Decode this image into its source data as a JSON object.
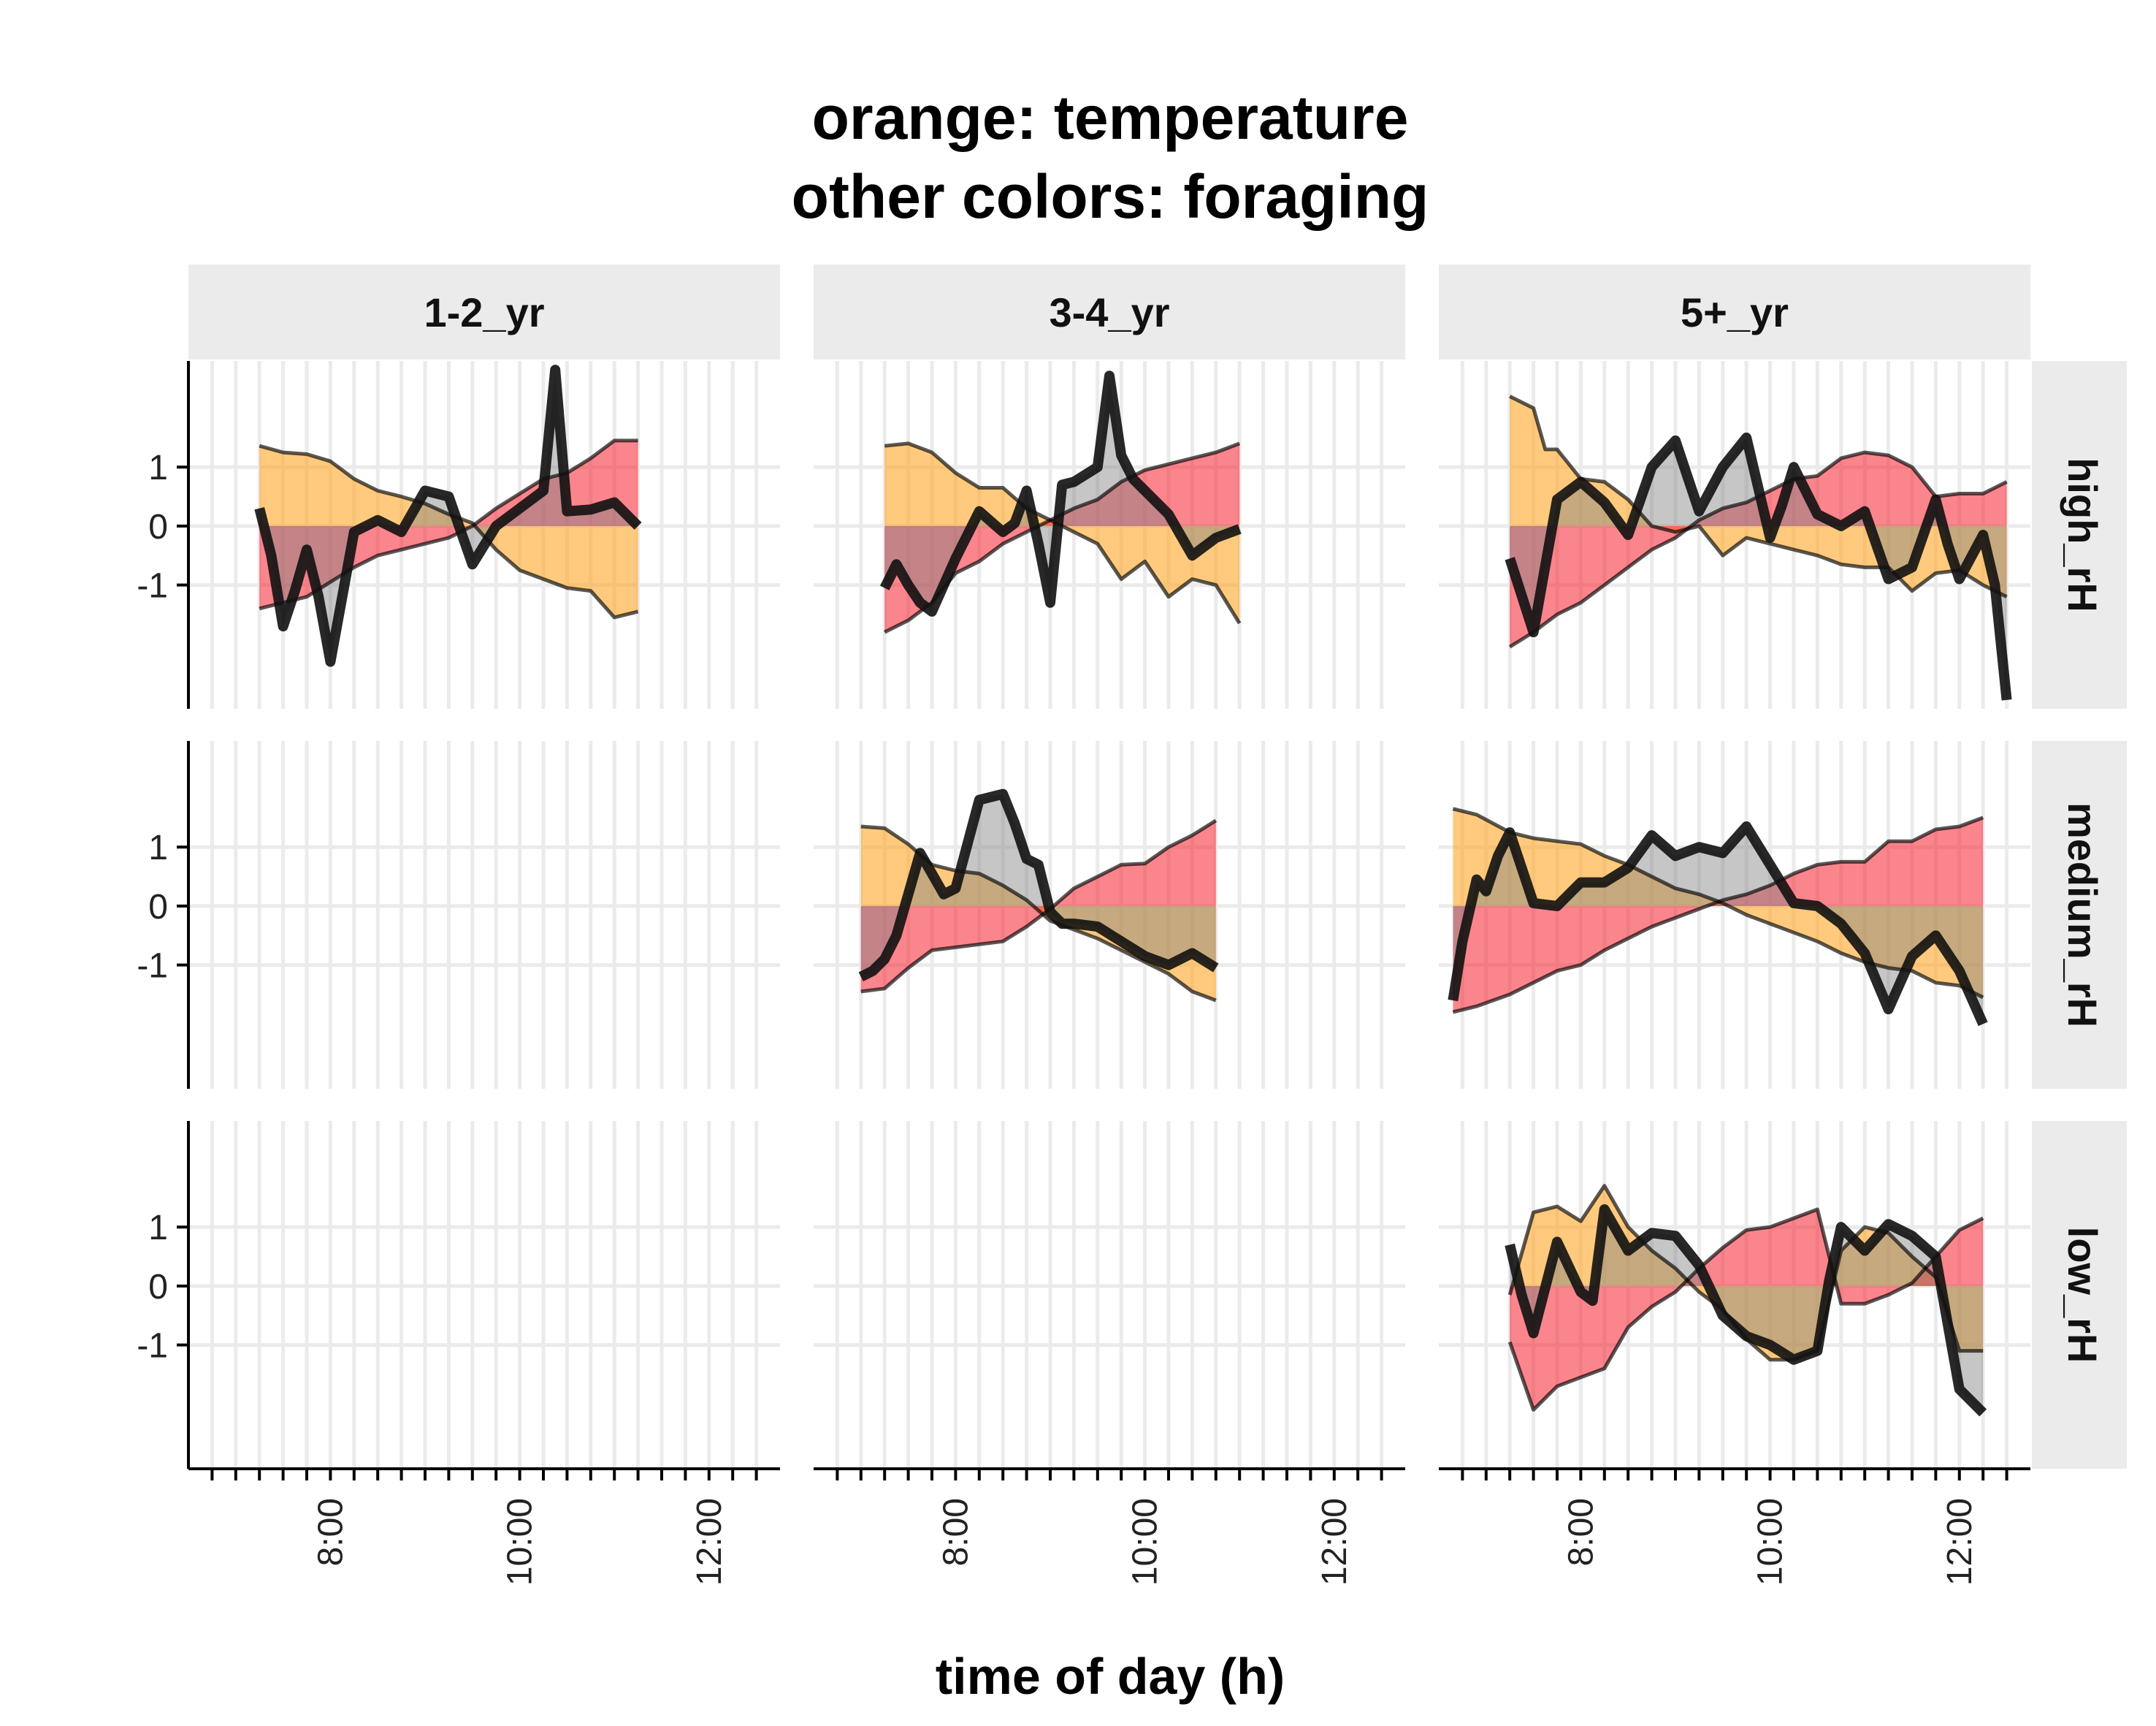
{
  "chart_data": {
    "type": "area",
    "title": "orange: temperature\nother colors: foraging",
    "xlabel": "time of day (h)",
    "ylabel": "",
    "xlim": [
      6.5,
      12.75
    ],
    "ylim": [
      -3.1,
      2.8
    ],
    "x_ticks": [
      8,
      10,
      12
    ],
    "x_tick_labels": [
      "8:00",
      "10:00",
      "12:00"
    ],
    "y_ticks": [
      -1,
      0,
      1
    ],
    "y_tick_labels": [
      "-1",
      "0",
      "1"
    ],
    "grid": true,
    "columns": [
      "1-2_yr",
      "3-4_yr",
      "5+_yr"
    ],
    "rows": [
      "high_rH",
      "medium_rH",
      "low_rH"
    ],
    "colors": {
      "temperature": "#FFA726",
      "foraging_band": "#F8212F",
      "foraging_line": "#000000",
      "overlap": "#808080"
    },
    "panels": [
      {
        "column": "1-2_yr",
        "row": "high_rH",
        "temperature": {
          "x": [
            7.25,
            7.5,
            7.75,
            8.0,
            8.25,
            8.5,
            8.75,
            9.0,
            9.25,
            9.5,
            9.75,
            10.0,
            10.25,
            10.5,
            10.75,
            11.0,
            11.25
          ],
          "y": [
            1.36,
            1.25,
            1.22,
            1.1,
            0.8,
            0.6,
            0.5,
            0.38,
            0.2,
            0.05,
            -0.4,
            -0.75,
            -0.9,
            -1.05,
            -1.1,
            -1.55,
            -1.45
          ]
        },
        "foraging_band": {
          "x": [
            7.25,
            7.5,
            7.75,
            8.0,
            8.25,
            8.5,
            8.75,
            9.0,
            9.25,
            9.5,
            9.75,
            10.0,
            10.25,
            10.5,
            10.75,
            11.0,
            11.25
          ],
          "y": [
            -1.4,
            -1.3,
            -1.2,
            -0.95,
            -0.7,
            -0.5,
            -0.4,
            -0.3,
            -0.2,
            0,
            0.3,
            0.55,
            0.8,
            0.9,
            1.15,
            1.45,
            1.45
          ]
        },
        "foraging_line": {
          "x": [
            7.25,
            7.375,
            7.5,
            7.625,
            7.75,
            7.875,
            8.0,
            8.25,
            8.5,
            8.75,
            9.0,
            9.25,
            9.5,
            9.75,
            10.0,
            10.25,
            10.375,
            10.5,
            10.75,
            11.0,
            11.25
          ],
          "y": [
            0.3,
            -0.5,
            -1.7,
            -1.1,
            -0.4,
            -1.2,
            -2.3,
            -0.1,
            0.1,
            -0.1,
            0.6,
            0.5,
            -0.65,
            0,
            0.3,
            0.6,
            2.65,
            0.25,
            0.28,
            0.4,
            0
          ]
        }
      },
      {
        "column": "1-2_yr",
        "row": "medium_rH"
      },
      {
        "column": "1-2_yr",
        "row": "low_rH"
      },
      {
        "column": "3-4_yr",
        "row": "high_rH",
        "temperature": {
          "x": [
            7.25,
            7.5,
            7.75,
            8.0,
            8.25,
            8.5,
            8.75,
            9.0,
            9.25,
            9.5,
            9.75,
            10.0,
            10.25,
            10.5,
            10.75,
            11.0
          ],
          "y": [
            1.36,
            1.4,
            1.25,
            0.9,
            0.65,
            0.65,
            0.3,
            0.1,
            -0.1,
            -0.3,
            -0.9,
            -0.6,
            -1.2,
            -0.9,
            -1.0,
            -1.65
          ]
        },
        "foraging_band": {
          "x": [
            7.25,
            7.5,
            7.75,
            8.0,
            8.25,
            8.5,
            8.75,
            9.0,
            9.25,
            9.5,
            9.75,
            10.0,
            10.25,
            10.5,
            10.75,
            11.0
          ],
          "y": [
            -1.8,
            -1.6,
            -1.3,
            -0.8,
            -0.6,
            -0.3,
            -0.1,
            0.1,
            0.3,
            0.45,
            0.75,
            0.95,
            1.05,
            1.15,
            1.25,
            1.4
          ]
        },
        "foraging_line": {
          "x": [
            7.25,
            7.375,
            7.5,
            7.625,
            7.75,
            7.875,
            8.0,
            8.25,
            8.5,
            8.625,
            8.75,
            8.875,
            9.0,
            9.125,
            9.25,
            9.5,
            9.625,
            9.75,
            9.875,
            10.0,
            10.25,
            10.5,
            10.75,
            11.0
          ],
          "y": [
            -1.05,
            -0.65,
            -1.0,
            -1.3,
            -1.45,
            -1.0,
            -0.55,
            0.25,
            -0.1,
            0.05,
            0.6,
            -0.3,
            -1.3,
            0.7,
            0.75,
            1.0,
            2.55,
            1.2,
            0.8,
            0.6,
            0.2,
            -0.5,
            -0.2,
            -0.05
          ]
        }
      },
      {
        "column": "3-4_yr",
        "row": "medium_rH",
        "temperature": {
          "x": [
            7.0,
            7.25,
            7.5,
            7.75,
            8.0,
            8.25,
            8.5,
            8.75,
            9.0,
            9.25,
            9.5,
            9.75,
            10.0,
            10.25,
            10.5,
            10.75
          ],
          "y": [
            1.35,
            1.32,
            1.05,
            0.7,
            0.6,
            0.55,
            0.35,
            0.1,
            -0.25,
            -0.4,
            -0.55,
            -0.75,
            -0.95,
            -1.15,
            -1.45,
            -1.6
          ]
        },
        "foraging_band": {
          "x": [
            7.0,
            7.25,
            7.5,
            7.75,
            8.0,
            8.25,
            8.5,
            8.75,
            9.0,
            9.25,
            9.5,
            9.75,
            10.0,
            10.25,
            10.5,
            10.75
          ],
          "y": [
            -1.45,
            -1.4,
            -1.05,
            -0.75,
            -0.7,
            -0.65,
            -0.6,
            -0.35,
            -0.05,
            0.3,
            0.5,
            0.7,
            0.72,
            1.0,
            1.2,
            1.45
          ]
        },
        "foraging_line": {
          "x": [
            7.0,
            7.125,
            7.25,
            7.375,
            7.5,
            7.625,
            7.75,
            7.875,
            8.0,
            8.25,
            8.5,
            8.625,
            8.75,
            8.875,
            9.0,
            9.125,
            9.25,
            9.5,
            9.75,
            10.0,
            10.25,
            10.5,
            10.75
          ],
          "y": [
            -1.2,
            -1.1,
            -0.9,
            -0.5,
            0.2,
            0.9,
            0.55,
            0.2,
            0.3,
            1.8,
            1.9,
            1.4,
            0.8,
            0.7,
            -0.1,
            -0.3,
            -0.3,
            -0.35,
            -0.6,
            -0.85,
            -1.0,
            -0.8,
            -1.05
          ]
        }
      },
      {
        "column": "3-4_yr",
        "row": "low_rH"
      },
      {
        "column": "5+_yr",
        "row": "high_rH",
        "temperature": {
          "x": [
            7.25,
            7.5,
            7.625,
            7.75,
            8.0,
            8.25,
            8.5,
            8.75,
            9.0,
            9.25,
            9.5,
            9.75,
            10.0,
            10.25,
            10.5,
            10.75,
            11.0,
            11.25,
            11.5,
            11.75,
            12.0,
            12.25,
            12.5
          ],
          "y": [
            2.2,
            2.0,
            1.3,
            1.3,
            0.8,
            0.75,
            0.45,
            0,
            -0.1,
            0,
            -0.5,
            -0.2,
            -0.3,
            -0.4,
            -0.5,
            -0.65,
            -0.7,
            -0.7,
            -1.1,
            -0.8,
            -0.75,
            -1.0,
            -1.2
          ]
        },
        "foraging_band": {
          "x": [
            7.25,
            7.5,
            7.75,
            8.0,
            8.25,
            8.5,
            8.75,
            9.0,
            9.25,
            9.5,
            9.75,
            10.0,
            10.25,
            10.5,
            10.75,
            11.0,
            11.25,
            11.5,
            11.75,
            12.0,
            12.25,
            12.5
          ],
          "y": [
            -2.05,
            -1.8,
            -1.5,
            -1.3,
            -1.0,
            -0.7,
            -0.4,
            -0.2,
            0.1,
            0.3,
            0.4,
            0.6,
            0.8,
            0.85,
            1.15,
            1.25,
            1.2,
            1.0,
            0.5,
            0.55,
            0.55,
            0.75
          ]
        },
        "foraging_line": {
          "x": [
            7.25,
            7.5,
            7.75,
            8.0,
            8.25,
            8.5,
            8.75,
            9.0,
            9.25,
            9.5,
            9.75,
            10.0,
            10.125,
            10.25,
            10.5,
            10.75,
            11.0,
            11.25,
            11.5,
            11.75,
            11.875,
            12.0,
            12.25,
            12.375,
            12.5
          ],
          "y": [
            -0.55,
            -1.8,
            0.45,
            0.75,
            0.4,
            -0.15,
            1.0,
            1.45,
            0.25,
            1.0,
            1.5,
            -0.2,
            0.35,
            1.0,
            0.2,
            0,
            0.25,
            -0.9,
            -0.7,
            0.45,
            -0.3,
            -0.9,
            -0.15,
            -1.0,
            -2.95
          ]
        }
      },
      {
        "column": "5+_yr",
        "row": "medium_rH",
        "temperature": {
          "x": [
            6.65,
            6.9,
            7.25,
            7.5,
            7.75,
            8.0,
            8.25,
            8.5,
            8.75,
            9.0,
            9.25,
            9.5,
            9.75,
            10.0,
            10.25,
            10.5,
            10.75,
            11.0,
            11.25,
            11.5,
            11.75,
            12.0,
            12.25
          ],
          "y": [
            1.65,
            1.55,
            1.25,
            1.15,
            1.1,
            1.05,
            0.85,
            0.7,
            0.5,
            0.3,
            0.2,
            0.05,
            -0.15,
            -0.3,
            -0.45,
            -0.6,
            -0.8,
            -0.95,
            -1.05,
            -1.1,
            -1.3,
            -1.35,
            -1.55
          ]
        },
        "foraging_band": {
          "x": [
            6.65,
            6.9,
            7.25,
            7.5,
            7.75,
            8.0,
            8.25,
            8.5,
            8.75,
            9.0,
            9.25,
            9.5,
            9.75,
            10.0,
            10.25,
            10.5,
            10.75,
            11.0,
            11.25,
            11.5,
            11.75,
            12.0,
            12.25
          ],
          "y": [
            -1.8,
            -1.7,
            -1.5,
            -1.3,
            -1.1,
            -1.0,
            -0.75,
            -0.55,
            -0.35,
            -0.2,
            -0.05,
            0.1,
            0.2,
            0.35,
            0.55,
            0.7,
            0.75,
            0.75,
            1.1,
            1.1,
            1.3,
            1.35,
            1.5
          ]
        },
        "foraging_line": {
          "x": [
            6.65,
            6.75,
            6.9,
            7.0,
            7.125,
            7.25,
            7.5,
            7.75,
            8.0,
            8.25,
            8.5,
            8.75,
            9.0,
            9.25,
            9.5,
            9.75,
            10.0,
            10.25,
            10.5,
            10.75,
            11.0,
            11.25,
            11.5,
            11.75,
            12.0,
            12.25
          ],
          "y": [
            -1.6,
            -0.6,
            0.45,
            0.25,
            0.85,
            1.25,
            0.05,
            0,
            0.4,
            0.4,
            0.65,
            1.2,
            0.85,
            1.0,
            0.9,
            1.35,
            0.7,
            0.05,
            0,
            -0.3,
            -0.8,
            -1.75,
            -0.85,
            -0.5,
            -1.1,
            -2.0
          ]
        }
      },
      {
        "column": "5+_yr",
        "row": "low_rH",
        "temperature": {
          "x": [
            7.25,
            7.5,
            7.75,
            8.0,
            8.25,
            8.5,
            8.75,
            9.0,
            9.25,
            9.5,
            9.75,
            10.0,
            10.25,
            10.5,
            10.75,
            11.0,
            11.25,
            11.5,
            11.75,
            12.0,
            12.25
          ],
          "y": [
            -0.15,
            1.25,
            1.35,
            1.1,
            1.7,
            1.0,
            0.6,
            0.3,
            -0.1,
            -0.4,
            -0.9,
            -1.25,
            -1.25,
            -1.1,
            0.6,
            1.0,
            0.9,
            0.5,
            0.15,
            -1.1,
            -1.1
          ]
        },
        "foraging_band": {
          "x": [
            7.25,
            7.5,
            7.75,
            8.0,
            8.25,
            8.5,
            8.75,
            9.0,
            9.25,
            9.5,
            9.75,
            10.0,
            10.25,
            10.5,
            10.75,
            11.0,
            11.25,
            11.5,
            11.75,
            12.0,
            12.25
          ],
          "y": [
            -0.95,
            -2.1,
            -1.7,
            -1.55,
            -1.4,
            -0.7,
            -0.35,
            -0.1,
            0.3,
            0.65,
            0.95,
            1.0,
            1.15,
            1.3,
            -0.3,
            -0.3,
            -0.15,
            0.05,
            0.5,
            0.95,
            1.15
          ]
        },
        "foraging_line": {
          "x": [
            7.25,
            7.375,
            7.5,
            7.75,
            8.0,
            8.125,
            8.25,
            8.5,
            8.75,
            9.0,
            9.25,
            9.5,
            9.75,
            10.0,
            10.25,
            10.5,
            10.625,
            10.75,
            11.0,
            11.25,
            11.5,
            11.75,
            12.0,
            12.25
          ],
          "y": [
            0.7,
            -0.15,
            -0.8,
            0.75,
            -0.1,
            -0.25,
            1.3,
            0.6,
            0.9,
            0.85,
            0.35,
            -0.5,
            -0.85,
            -1.0,
            -1.25,
            -1.1,
            0.1,
            1.0,
            0.6,
            1.05,
            0.85,
            0.5,
            -1.75,
            -2.15
          ]
        }
      }
    ]
  }
}
